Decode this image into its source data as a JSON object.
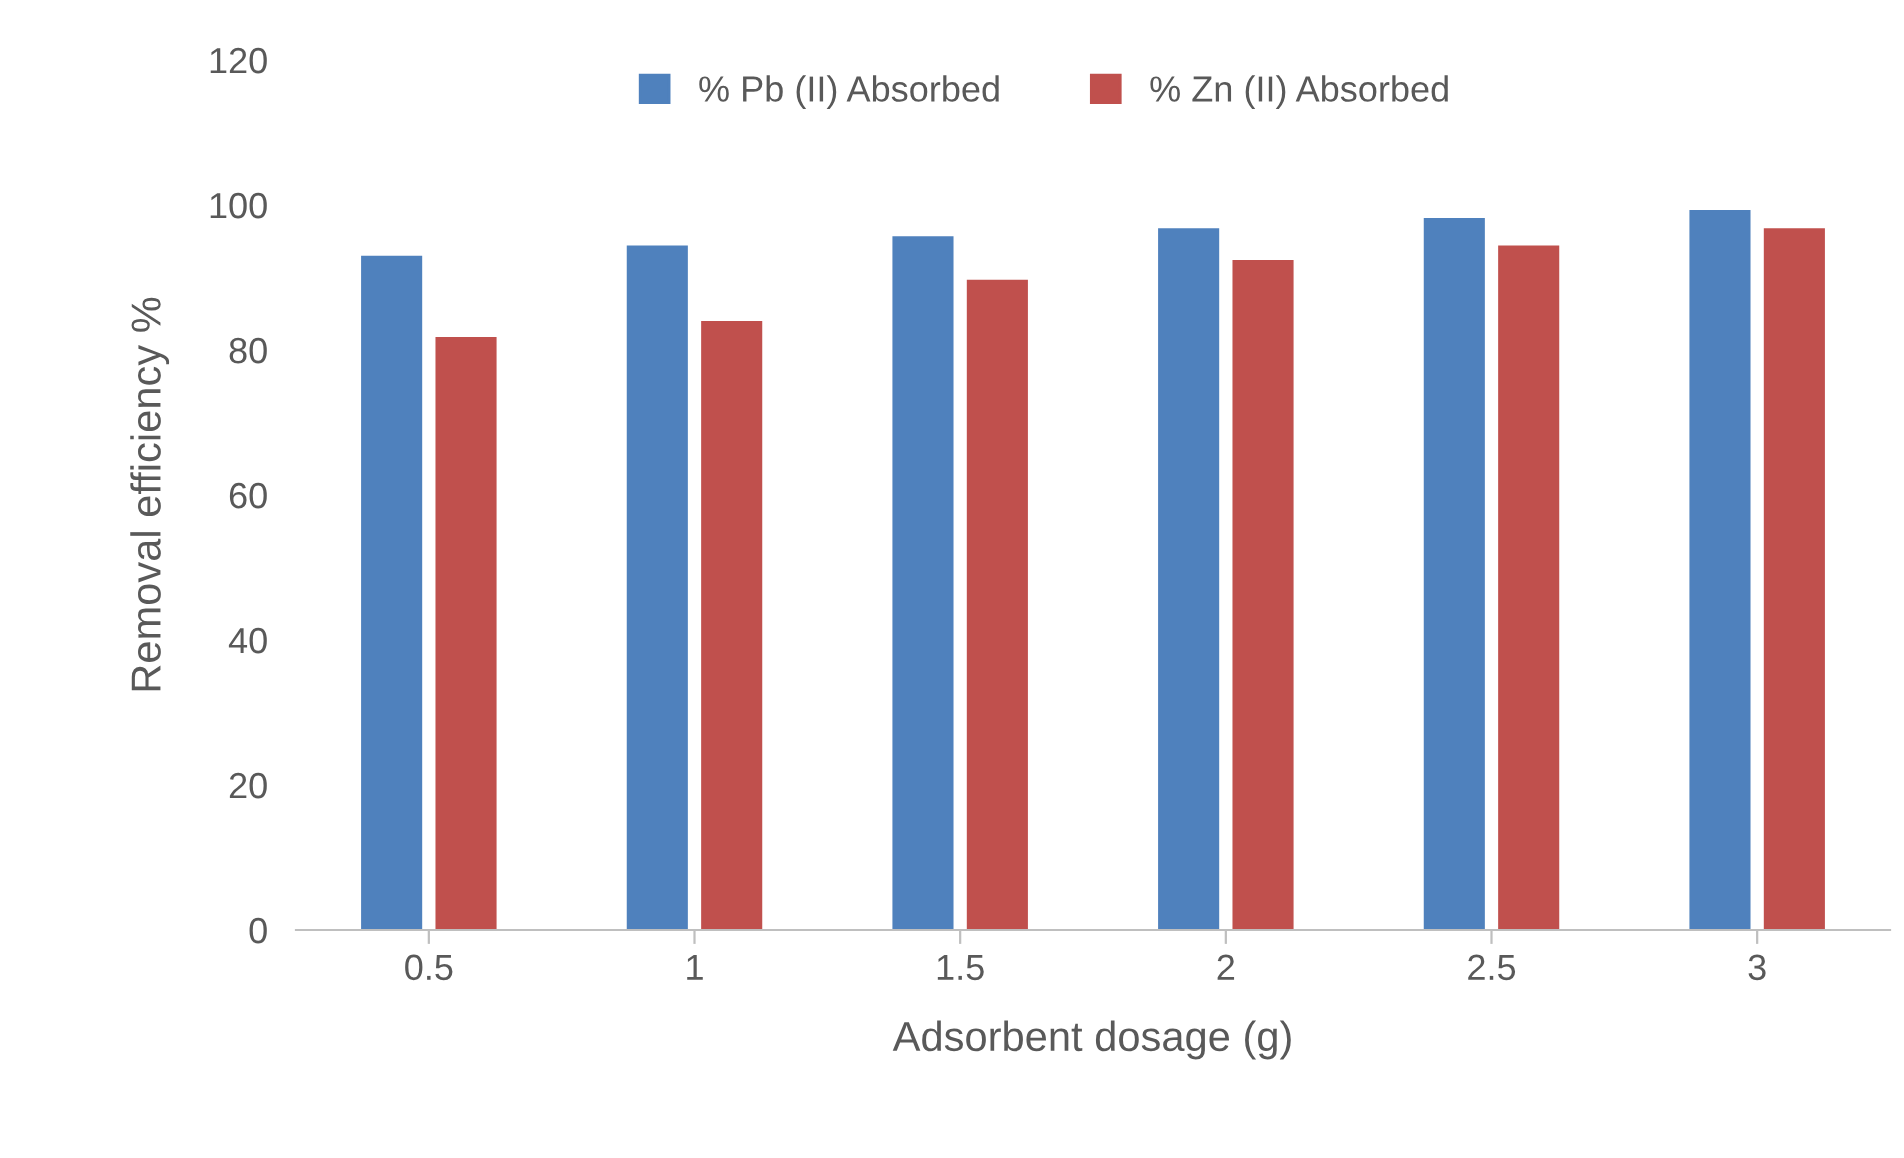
{
  "chart_data": {
    "type": "bar",
    "xlabel": "Adsorbent dosage (g)",
    "ylabel": "Removal efficiency %",
    "categories": [
      "0.5",
      "1",
      "1.5",
      "2",
      "2.5",
      "3"
    ],
    "series": [
      {
        "name": "% Pb (II) Absorbed",
        "color": "#4f81bd",
        "values": [
          93.0,
          94.4,
          95.7,
          96.8,
          98.2,
          99.3
        ]
      },
      {
        "name": "% Zn (II) Absorbed",
        "color": "#c0504d",
        "values": [
          81.8,
          84.0,
          89.7,
          92.4,
          94.4,
          96.8
        ]
      }
    ],
    "ylim": [
      0,
      120
    ],
    "yticks": [
      0,
      20,
      40,
      60,
      80,
      100,
      120
    ],
    "grid": false,
    "legend": "top"
  }
}
